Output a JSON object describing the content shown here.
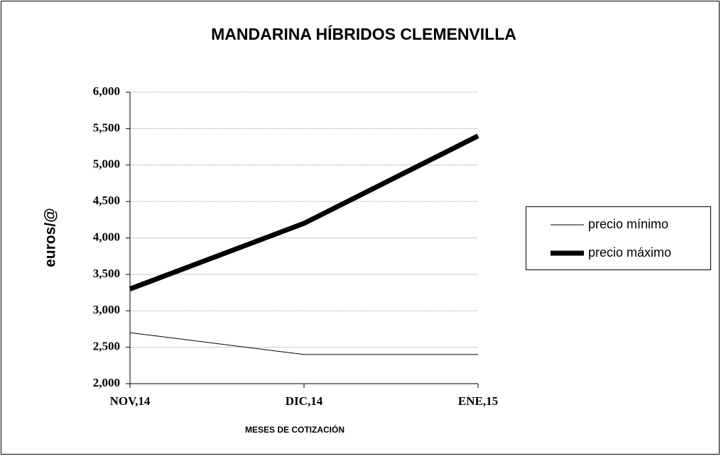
{
  "chart_data": {
    "type": "line",
    "title": "MANDARINA HÍBRIDOS CLEMENVILLA",
    "x_label": "MESES DE COTIZACIÓN",
    "y_label": "euros/@",
    "categories": [
      "NOV,14",
      "DIC,14",
      "ENE,15"
    ],
    "series": [
      {
        "name": "precio mínimo",
        "color": "#000000",
        "values": [
          2700,
          2400,
          2400
        ]
      },
      {
        "name": "precio máximo",
        "color": "#000000",
        "values": [
          3300,
          4200,
          5400
        ]
      }
    ],
    "ylim": [
      2000,
      6000
    ],
    "yticks": [
      {
        "value": 2000,
        "label": "2,000"
      },
      {
        "value": 2500,
        "label": "2,500"
      },
      {
        "value": 3000,
        "label": "3,000"
      },
      {
        "value": 3500,
        "label": "3,500"
      },
      {
        "value": 4000,
        "label": "4,000"
      },
      {
        "value": 4500,
        "label": "4,500"
      },
      {
        "value": 5000,
        "label": "5,000"
      },
      {
        "value": 5500,
        "label": "5,500"
      },
      {
        "value": 6000,
        "label": "6,000"
      }
    ],
    "grid": true,
    "legend": "right"
  }
}
